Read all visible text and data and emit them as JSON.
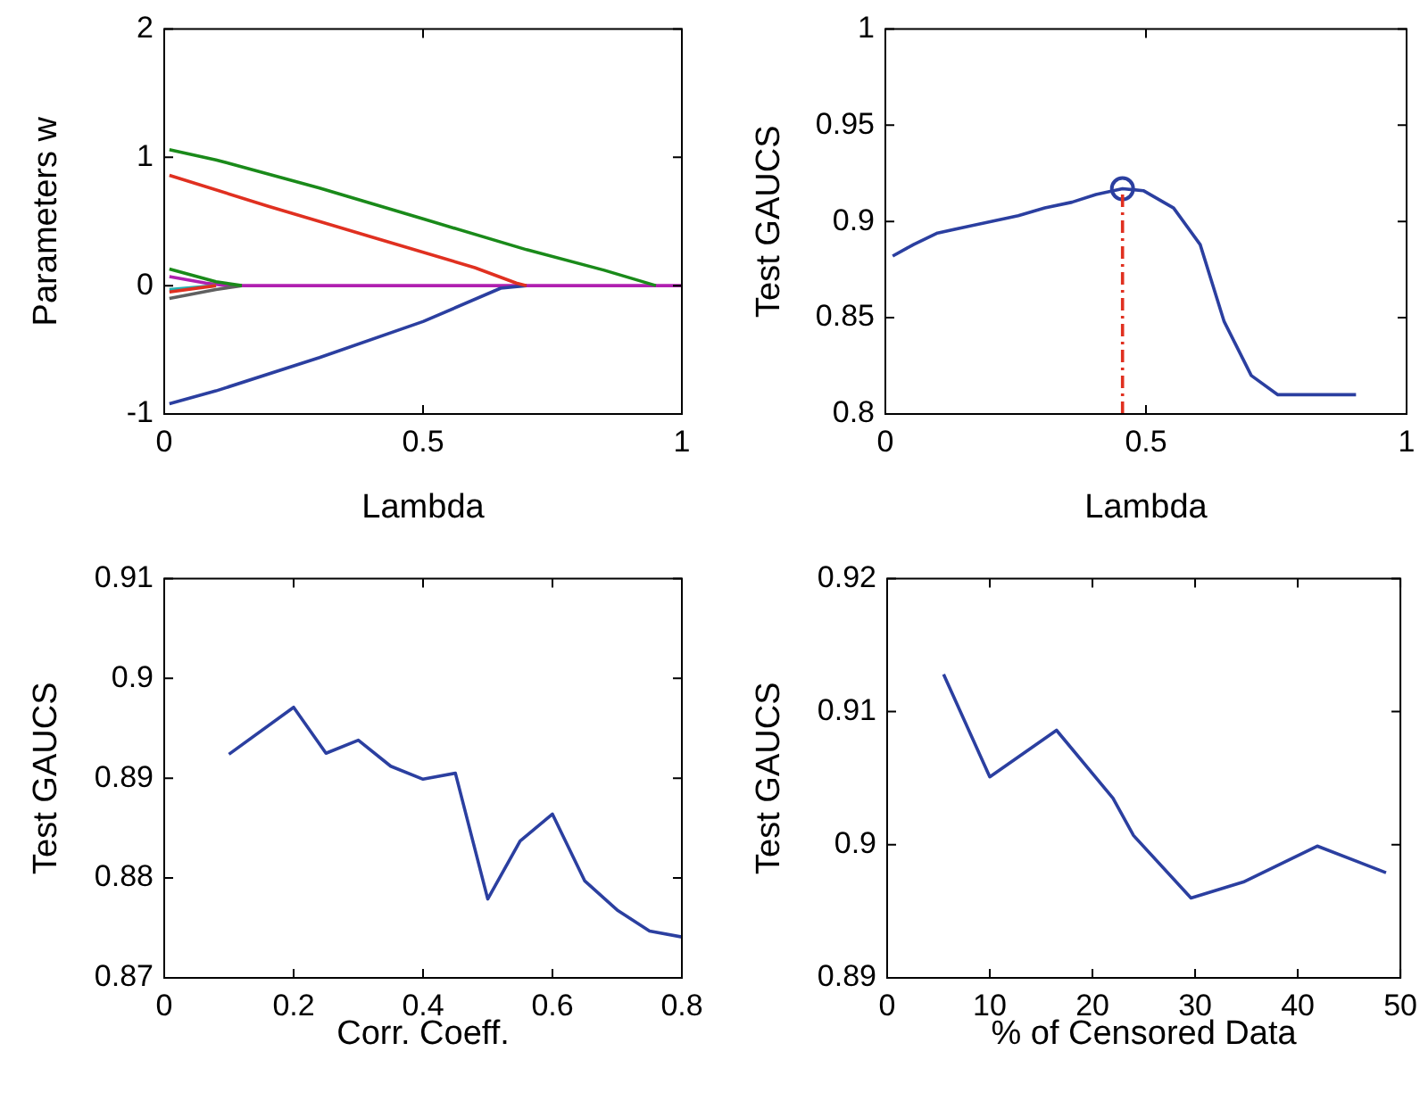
{
  "chart_data": [
    {
      "type": "line",
      "xlabel": "Lambda",
      "ylabel": "Parameters w",
      "xlim": [
        0,
        1
      ],
      "ylim": [
        -1,
        2
      ],
      "xticks": [
        0,
        0.5,
        1
      ],
      "yticks": [
        -1,
        0,
        1,
        2
      ],
      "grid": false,
      "legend": false,
      "marker": "none",
      "series": [
        {
          "color": "#1a8a1a",
          "x": [
            0.01,
            0.1,
            0.3,
            0.5,
            0.7,
            0.85,
            0.95
          ],
          "values": [
            1.06,
            0.98,
            0.76,
            0.52,
            0.28,
            0.12,
            0
          ]
        },
        {
          "color": "#e03020",
          "x": [
            0.01,
            0.2,
            0.4,
            0.6,
            0.68,
            0.7
          ],
          "values": [
            0.86,
            0.62,
            0.38,
            0.14,
            0.02,
            0
          ]
        },
        {
          "color": "#2b3fa0",
          "x": [
            0.01,
            0.1,
            0.3,
            0.5,
            0.65,
            0.7
          ],
          "values": [
            -0.92,
            -0.82,
            -0.56,
            -0.28,
            -0.02,
            0
          ]
        },
        {
          "color": "#1a8a1a",
          "x": [
            0.01,
            0.1,
            0.15
          ],
          "values": [
            0.13,
            0.03,
            0
          ]
        },
        {
          "color": "#606060",
          "x": [
            0.01,
            0.1,
            0.15
          ],
          "values": [
            -0.1,
            -0.03,
            0
          ]
        },
        {
          "color": "#e03020",
          "x": [
            0.01,
            0.1
          ],
          "values": [
            -0.05,
            0
          ]
        },
        {
          "color": "#20b0b0",
          "x": [
            0.01,
            0.1
          ],
          "values": [
            -0.03,
            0
          ]
        },
        {
          "color": "#b020b0",
          "x": [
            0.01,
            0.08,
            0.12,
            1
          ],
          "values": [
            0.07,
            0.02,
            0,
            0
          ]
        }
      ]
    },
    {
      "type": "line",
      "xlabel": "Lambda",
      "ylabel": "Test GAUCS",
      "xlim": [
        0,
        1
      ],
      "ylim": [
        0.8,
        1
      ],
      "xticks": [
        0,
        0.5,
        1
      ],
      "yticks": [
        0.8,
        0.85,
        0.9,
        0.95,
        1
      ],
      "grid": false,
      "legend": false,
      "marker": "none",
      "series": [
        {
          "color": "#2b3fa0",
          "x": [
            0.014,
            0.054,
            0.1,
            0.151,
            0.203,
            0.255,
            0.306,
            0.358,
            0.404,
            0.455,
            0.495,
            0.553,
            0.604,
            0.65,
            0.702,
            0.753,
            0.903
          ],
          "values": [
            0.882,
            0.888,
            0.894,
            0.897,
            0.9,
            0.903,
            0.907,
            0.91,
            0.914,
            0.917,
            0.916,
            0.907,
            0.888,
            0.848,
            0.82,
            0.81,
            0.81
          ]
        },
        {
          "type": "line",
          "color": "#e03020",
          "line_style": "dashed",
          "x": [
            0.455,
            0.455
          ],
          "values": [
            0.8,
            0.917
          ]
        },
        {
          "type": "scatter",
          "color": "#2b3fa0",
          "marker": "circle",
          "x": [
            0.455
          ],
          "values": [
            0.917
          ]
        }
      ]
    },
    {
      "type": "line",
      "xlabel": "Corr. Coeff.",
      "ylabel": "Test GAUCS",
      "xlim": [
        0,
        0.8
      ],
      "ylim": [
        0.87,
        0.91
      ],
      "xticks": [
        0,
        0.2,
        0.4,
        0.6,
        0.8
      ],
      "yticks": [
        0.87,
        0.88,
        0.89,
        0.9,
        0.91
      ],
      "grid": false,
      "legend": false,
      "marker": "none",
      "series": [
        {
          "color": "#2b3fa0",
          "x": [
            0.1,
            0.2,
            0.25,
            0.3,
            0.35,
            0.4,
            0.45,
            0.5,
            0.55,
            0.6,
            0.65,
            0.7,
            0.75,
            0.8
          ],
          "values": [
            0.8924,
            0.8971,
            0.8925,
            0.8938,
            0.8912,
            0.8899,
            0.8905,
            0.8779,
            0.8837,
            0.8864,
            0.8797,
            0.8768,
            0.8747,
            0.8741
          ]
        }
      ]
    },
    {
      "type": "line",
      "xlabel": "% of Censored Data",
      "ylabel": "Test GAUCS",
      "xlim": [
        0,
        50
      ],
      "ylim": [
        0.89,
        0.92
      ],
      "xticks": [
        0,
        10,
        20,
        30,
        40,
        50
      ],
      "yticks": [
        0.89,
        0.9,
        0.91,
        0.92
      ],
      "grid": false,
      "legend": false,
      "marker": "none",
      "series": [
        {
          "color": "#2b3fa0",
          "x": [
            5.5,
            10,
            16.5,
            22,
            24,
            29.6,
            34.7,
            41.9,
            48.6
          ],
          "values": [
            0.9128,
            0.9051,
            0.9086,
            0.9035,
            0.9007,
            0.896,
            0.8972,
            0.8999,
            0.8979
          ]
        }
      ]
    }
  ]
}
